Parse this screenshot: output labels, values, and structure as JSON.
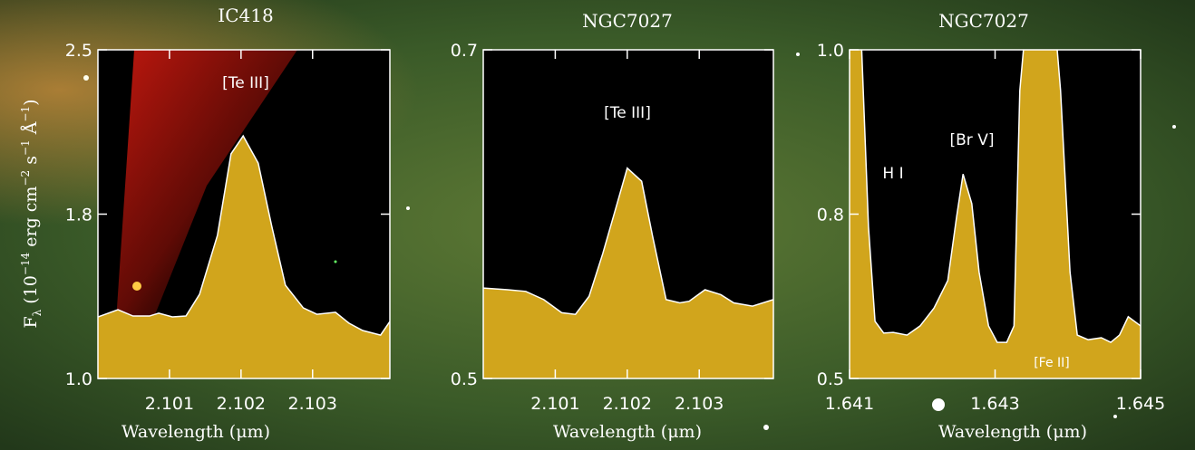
{
  "chart_data": [
    {
      "type": "area",
      "title": "IC418",
      "x_label": "Wavelength (μm)",
      "y_label": [
        "F",
        "λ",
        " (10",
        "−14",
        " erg cm",
        "−2",
        " s",
        "−1",
        " Å",
        "−1",
        ")"
      ],
      "annotations": [
        "[Te III]"
      ],
      "color": "#d1a51c",
      "line_color": "#ffffff",
      "x": [
        2.1,
        2.10028,
        2.10049,
        2.10072,
        2.10085,
        2.10104,
        2.10123,
        2.10142,
        2.10167,
        2.10186,
        2.10203,
        2.10224,
        2.10243,
        2.10262,
        2.10287,
        2.10306,
        2.10332,
        2.10351,
        2.1037,
        2.10395,
        2.10408
      ],
      "values": [
        1.281,
        1.314,
        1.285,
        1.285,
        1.298,
        1.281,
        1.285,
        1.384,
        1.653,
        2.025,
        2.107,
        1.983,
        1.694,
        1.426,
        1.322,
        1.293,
        1.302,
        1.252,
        1.219,
        1.198,
        1.26
      ],
      "xlim": [
        2.1,
        2.10408
      ],
      "xticks": [
        2.101,
        2.102,
        2.103
      ],
      "ylim": [
        1.0,
        2.5
      ],
      "yticks": [
        {
          "value": 1.0,
          "label": "1.0"
        },
        {
          "value": 1.75,
          "label": "1.8"
        },
        2.5
      ]
    },
    {
      "type": "area",
      "title": "NGC7027",
      "x_label": "Wavelength (μm)",
      "annotations": [
        "[Te III]"
      ],
      "color": "#d1a51c",
      "line_color": "#ffffff",
      "x": [
        2.1,
        2.10034,
        2.10059,
        2.10084,
        2.10109,
        2.10128,
        2.10147,
        2.10166,
        2.10185,
        2.102,
        2.1022,
        2.10235,
        2.10254,
        2.10273,
        2.10286,
        2.10308,
        2.1033,
        2.10348,
        2.10374,
        2.10403
      ],
      "values": [
        0.555,
        0.554,
        0.553,
        0.548,
        0.54,
        0.539,
        0.55,
        0.576,
        0.605,
        0.628,
        0.62,
        0.587,
        0.548,
        0.546,
        0.547,
        0.554,
        0.551,
        0.546,
        0.544,
        0.548
      ],
      "xlim": [
        2.1,
        2.10403
      ],
      "xticks": [
        2.101,
        2.102,
        2.103
      ],
      "ylim": [
        0.5,
        0.7
      ],
      "yticks": [
        0.5,
        0.7
      ]
    },
    {
      "type": "area",
      "title": "NGC7027",
      "x_label": "Wavelength (μm)",
      "annotations": [
        "H I",
        "[Br V]",
        "[Fe II]"
      ],
      "color": "#d1a51c",
      "line_color": "#ffffff",
      "x": [
        1.641,
        1.64116,
        1.64126,
        1.64135,
        1.64147,
        1.6416,
        1.64179,
        1.64197,
        1.64216,
        1.64235,
        1.64247,
        1.64256,
        1.64268,
        1.64278,
        1.64291,
        1.64303,
        1.64316,
        1.64326,
        1.64334,
        1.64347,
        1.64378,
        1.6439,
        1.64403,
        1.64413,
        1.64428,
        1.64446,
        1.64459,
        1.64471,
        1.64483,
        1.645
      ],
      "values": [
        1.034,
        1.02,
        0.731,
        0.587,
        0.569,
        0.57,
        0.566,
        0.58,
        0.607,
        0.649,
        0.745,
        0.811,
        0.766,
        0.662,
        0.58,
        0.555,
        0.555,
        0.58,
        0.938,
        1.1,
        1.1,
        0.938,
        0.662,
        0.566,
        0.559,
        0.562,
        0.555,
        0.566,
        0.594,
        0.58
      ],
      "xlim": [
        1.641,
        1.645
      ],
      "xticks": [
        1.641,
        1.643,
        1.645
      ],
      "ylim": [
        0.5,
        1.0
      ],
      "yticks": [
        {
          "value": 0.5,
          "label": "0.5"
        },
        {
          "value": 0.75,
          "label": "0.8"
        },
        {
          "value": 1.0,
          "label": "1.0"
        }
      ]
    }
  ]
}
